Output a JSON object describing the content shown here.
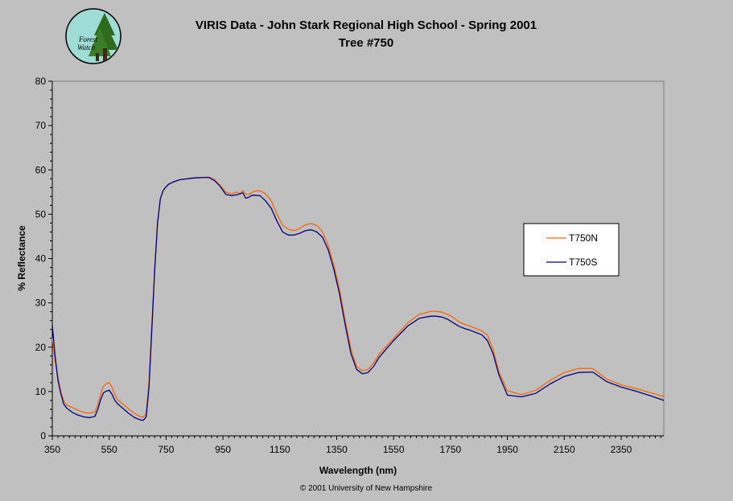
{
  "logo": {
    "text_line1": "Forest",
    "text_line2": "Watch"
  },
  "copyright": "© 2001 University of New Hampshire",
  "chart_data": {
    "type": "line",
    "title": "VIRIS Data - John Stark Regional High School - Spring 2001",
    "subtitle": "Tree #750",
    "xlabel": "Wavelength (nm)",
    "ylabel": "% Reflectance",
    "xlim": [
      350,
      2500
    ],
    "ylim": [
      0,
      80
    ],
    "xticks": [
      350,
      550,
      750,
      950,
      1150,
      1350,
      1550,
      1750,
      1950,
      2150,
      2350
    ],
    "yticks": [
      0,
      10,
      20,
      30,
      40,
      50,
      60,
      70,
      80
    ],
    "grid": false,
    "legend_position": "right",
    "series": [
      {
        "name": "T750N",
        "color": "#ff6600",
        "x": [
          350,
          360,
          370,
          380,
          390,
          400,
          420,
          440,
          460,
          480,
          500,
          510,
          520,
          530,
          540,
          550,
          560,
          570,
          580,
          600,
          620,
          640,
          660,
          670,
          680,
          690,
          700,
          710,
          720,
          730,
          740,
          750,
          760,
          780,
          800,
          850,
          900,
          920,
          940,
          960,
          980,
          1000,
          1010,
          1020,
          1030,
          1040,
          1050,
          1060,
          1080,
          1100,
          1120,
          1140,
          1160,
          1180,
          1200,
          1220,
          1240,
          1260,
          1280,
          1300,
          1320,
          1340,
          1360,
          1380,
          1400,
          1420,
          1440,
          1460,
          1480,
          1500,
          1550,
          1600,
          1640,
          1680,
          1700,
          1720,
          1740,
          1760,
          1780,
          1800,
          1820,
          1840,
          1860,
          1880,
          1900,
          1920,
          1950,
          2000,
          2050,
          2100,
          2150,
          2200,
          2250,
          2300,
          2350,
          2400,
          2450,
          2500
        ],
        "y": [
          22,
          17,
          13,
          10,
          8,
          7,
          6.4,
          5.8,
          5.3,
          5.1,
          5.4,
          7,
          9.5,
          11.2,
          11.8,
          12,
          11,
          9.3,
          8.1,
          7.1,
          6,
          5,
          4.3,
          4.2,
          5,
          12,
          25,
          38,
          48,
          53.5,
          55.3,
          56.2,
          56.8,
          57.4,
          57.8,
          58.2,
          58.4,
          57.8,
          56.5,
          55,
          54.6,
          55,
          54.6,
          55.3,
          54.5,
          54.5,
          54.8,
          55.2,
          55.3,
          54.6,
          53,
          50,
          47.5,
          46.6,
          46.3,
          46.8,
          47.6,
          47.9,
          47.5,
          46,
          43,
          38.5,
          33,
          26,
          19.5,
          15.7,
          14.7,
          15,
          16.5,
          18.5,
          22,
          25.5,
          27.4,
          28.1,
          28.1,
          27.9,
          27.4,
          26.7,
          25.7,
          25.1,
          24.7,
          24.2,
          23.7,
          22.7,
          19.5,
          14.5,
          10.2,
          9.3,
          10.3,
          12.5,
          14.3,
          15.2,
          15.2,
          12.8,
          11.5,
          10.7,
          9.8,
          8.9
        ]
      },
      {
        "name": "T750S",
        "color": "#000080",
        "x": [
          350,
          360,
          370,
          380,
          390,
          400,
          420,
          440,
          460,
          480,
          500,
          510,
          520,
          530,
          540,
          550,
          560,
          570,
          580,
          600,
          620,
          640,
          660,
          670,
          680,
          690,
          700,
          710,
          720,
          730,
          740,
          750,
          760,
          780,
          800,
          850,
          900,
          920,
          940,
          960,
          980,
          1000,
          1010,
          1020,
          1030,
          1040,
          1050,
          1060,
          1080,
          1100,
          1120,
          1140,
          1160,
          1180,
          1200,
          1220,
          1240,
          1260,
          1280,
          1300,
          1320,
          1340,
          1360,
          1380,
          1400,
          1420,
          1440,
          1460,
          1480,
          1500,
          1550,
          1600,
          1640,
          1680,
          1700,
          1720,
          1740,
          1760,
          1780,
          1800,
          1820,
          1840,
          1860,
          1880,
          1900,
          1920,
          1950,
          2000,
          2050,
          2100,
          2150,
          2200,
          2250,
          2300,
          2350,
          2400,
          2450,
          2500
        ],
        "y": [
          25,
          18,
          12.5,
          9.5,
          7.2,
          6.3,
          5.3,
          4.7,
          4.3,
          4.1,
          4.4,
          6,
          8.2,
          9.7,
          10.1,
          10.3,
          9.4,
          8,
          7.2,
          6.1,
          5,
          4.1,
          3.6,
          3.5,
          4.3,
          11,
          24,
          37.5,
          48,
          53.5,
          55.4,
          56.2,
          56.8,
          57.4,
          57.8,
          58.2,
          58.3,
          57.6,
          56.3,
          54.5,
          54.2,
          54.4,
          54.6,
          54.8,
          53.6,
          53.8,
          54.2,
          54.3,
          54.2,
          53,
          51.3,
          48.4,
          46,
          45.3,
          45.3,
          45.7,
          46.3,
          46.5,
          46,
          44.8,
          42,
          37.5,
          32,
          25,
          18.5,
          15,
          14,
          14.3,
          15.7,
          17.8,
          21.5,
          24.8,
          26.5,
          27,
          27,
          26.8,
          26.3,
          25.5,
          24.7,
          24.2,
          23.8,
          23.3,
          22.8,
          21.5,
          18.5,
          13.8,
          9.2,
          8.8,
          9.6,
          11.7,
          13.4,
          14.3,
          14.4,
          12.2,
          11,
          10.1,
          9.1,
          8
        ]
      }
    ]
  }
}
